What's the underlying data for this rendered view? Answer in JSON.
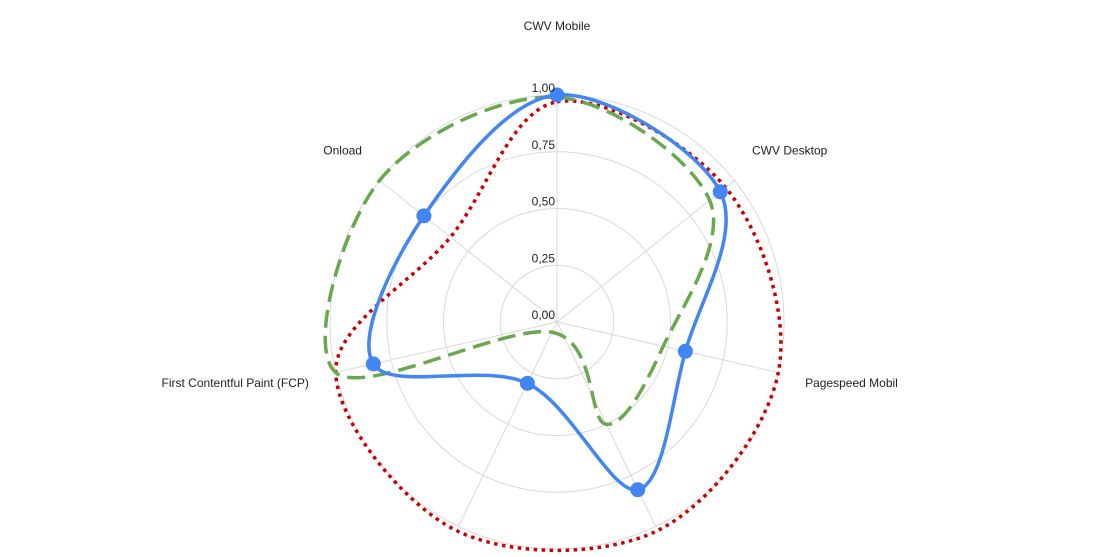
{
  "chart_data": {
    "type": "radar",
    "axes": [
      "CWV Mobile",
      "CWV Desktop",
      "Pagespeed Mobil",
      "",
      "",
      "First Contentful Paint (FCP)",
      "Onload"
    ],
    "tick_labels": [
      "0,00",
      "0,25",
      "0,50",
      "0,75",
      "1,00"
    ],
    "ticks": [
      0,
      0.25,
      0.5,
      0.75,
      1.0
    ],
    "range": [
      0,
      1
    ],
    "series": [
      {
        "color": "#4285f4",
        "style": "solid",
        "markers": true,
        "values": [
          1.0,
          0.92,
          0.58,
          0.82,
          0.3,
          0.83,
          0.75
        ]
      },
      {
        "color": "#6aa84f",
        "style": "dashed",
        "markers": false,
        "values": [
          0.99,
          0.86,
          0.48,
          0.5,
          0.05,
          1.0,
          1.0
        ]
      },
      {
        "color": "#cc0000",
        "style": "dotted",
        "markers": false,
        "values": [
          0.97,
          0.95,
          1.0,
          1.02,
          1.02,
          1.0,
          0.6
        ]
      }
    ]
  }
}
